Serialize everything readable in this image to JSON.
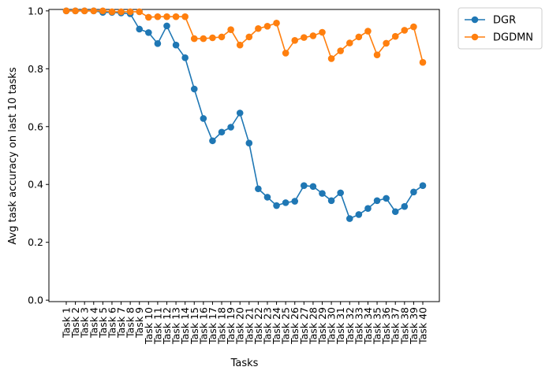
{
  "chart_data": {
    "type": "line",
    "xlabel": "Tasks",
    "ylabel": "Avg task accuracy on last 10 tasks",
    "ylim": [
      -0.005,
      1.005
    ],
    "yticks": [
      "0.0",
      "0.2",
      "0.4",
      "0.6",
      "0.8",
      "1.0"
    ],
    "categories": [
      "Task 1",
      "Task 2",
      "Task 3",
      "Task 4",
      "Task 5",
      "Task 6",
      "Task 7",
      "Task 8",
      "Task 9",
      "Task 10",
      "Task 11",
      "Task 12",
      "Task 13",
      "Task 14",
      "Task 15",
      "Task 16",
      "Task 17",
      "Task 18",
      "Task 19",
      "Task 20",
      "Task 21",
      "Task 22",
      "Task 23",
      "Task 24",
      "Task 25",
      "Task 26",
      "Task 27",
      "Task 28",
      "Task 29",
      "Task 30",
      "Task 31",
      "Task 32",
      "Task 33",
      "Task 34",
      "Task 35",
      "Task 36",
      "Task 37",
      "Task 38",
      "Task 39",
      "Task 40"
    ],
    "grid": false,
    "legend": "outside-top-right",
    "series": [
      {
        "name": "DGR",
        "color": "#1f77b4",
        "values": [
          1.0,
          1.0,
          1.0,
          1.0,
          0.995,
          0.995,
          0.993,
          0.99,
          0.937,
          0.925,
          0.887,
          0.948,
          0.882,
          0.838,
          0.73,
          0.628,
          0.551,
          0.581,
          0.598,
          0.647,
          0.543,
          0.385,
          0.356,
          0.327,
          0.337,
          0.342,
          0.396,
          0.393,
          0.369,
          0.344,
          0.371,
          0.282,
          0.296,
          0.317,
          0.344,
          0.352,
          0.306,
          0.324,
          0.374,
          0.396
        ]
      },
      {
        "name": "DGDMN",
        "color": "#ff7f0e",
        "values": [
          1.0,
          1.0,
          1.0,
          1.0,
          1.0,
          0.997,
          0.997,
          0.997,
          0.997,
          0.978,
          0.98,
          0.98,
          0.98,
          0.98,
          0.904,
          0.904,
          0.907,
          0.91,
          0.935,
          0.882,
          0.91,
          0.939,
          0.947,
          0.958,
          0.854,
          0.898,
          0.908,
          0.914,
          0.926,
          0.835,
          0.862,
          0.889,
          0.91,
          0.93,
          0.848,
          0.888,
          0.912,
          0.933,
          0.945,
          0.822
        ]
      }
    ]
  }
}
